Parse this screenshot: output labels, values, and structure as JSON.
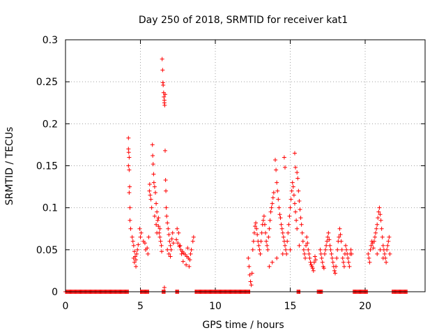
{
  "chart_data": {
    "type": "scatter",
    "title": "Day 250 of 2018, SRMTID for receiver kat1",
    "xlabel": "GPS time / hours",
    "ylabel": "SRMTID / TECUs",
    "xlim": [
      0,
      24
    ],
    "ylim": [
      0,
      0.3
    ],
    "xticks": [
      0,
      5,
      10,
      15,
      20
    ],
    "yticks": [
      0,
      0.05,
      0.1,
      0.15,
      0.2,
      0.25,
      0.3
    ],
    "xtick_labels": [
      "0",
      "5",
      "10",
      "15",
      "20"
    ],
    "ytick_labels": [
      "0",
      "0.05",
      "0.1",
      "0.15",
      "0.2",
      "0.25",
      "0.3"
    ],
    "grid": true,
    "marker": "+",
    "color": "#ff0000",
    "series": [
      {
        "name": "kat1",
        "points": [
          [
            4.2,
            0.183
          ],
          [
            4.2,
            0.17
          ],
          [
            4.22,
            0.166
          ],
          [
            4.25,
            0.16
          ],
          [
            4.2,
            0.15
          ],
          [
            4.25,
            0.145
          ],
          [
            4.28,
            0.125
          ],
          [
            4.25,
            0.118
          ],
          [
            4.3,
            0.1
          ],
          [
            4.3,
            0.085
          ],
          [
            4.35,
            0.075
          ],
          [
            4.45,
            0.065
          ],
          [
            4.5,
            0.06
          ],
          [
            4.55,
            0.055
          ],
          [
            4.6,
            0.048
          ],
          [
            4.65,
            0.042
          ],
          [
            4.7,
            0.038
          ],
          [
            4.75,
            0.045
          ],
          [
            4.8,
            0.05
          ],
          [
            4.55,
            0.04
          ],
          [
            4.6,
            0.035
          ],
          [
            4.7,
            0.03
          ],
          [
            4.85,
            0.056
          ],
          [
            4.95,
            0.075
          ],
          [
            5.0,
            0.065
          ],
          [
            5.05,
            0.07
          ],
          [
            5.2,
            0.06
          ],
          [
            5.3,
            0.058
          ],
          [
            5.35,
            0.05
          ],
          [
            5.45,
            0.052
          ],
          [
            5.5,
            0.045
          ],
          [
            5.55,
            0.065
          ],
          [
            5.6,
            0.12
          ],
          [
            5.62,
            0.128
          ],
          [
            5.65,
            0.115
          ],
          [
            5.7,
            0.11
          ],
          [
            5.75,
            0.1
          ],
          [
            5.8,
            0.175
          ],
          [
            5.82,
            0.162
          ],
          [
            5.85,
            0.152
          ],
          [
            5.88,
            0.14
          ],
          [
            5.9,
            0.13
          ],
          [
            5.95,
            0.125
          ],
          [
            6.0,
            0.118
          ],
          [
            6.05,
            0.105
          ],
          [
            6.1,
            0.095
          ],
          [
            6.15,
            0.085
          ],
          [
            6.2,
            0.078
          ],
          [
            6.25,
            0.07
          ],
          [
            6.3,
            0.065
          ],
          [
            6.35,
            0.06
          ],
          [
            6.4,
            0.055
          ],
          [
            6.42,
            0.048
          ],
          [
            6.1,
            0.07
          ],
          [
            6.2,
            0.088
          ],
          [
            6.3,
            0.075
          ],
          [
            5.95,
            0.09
          ],
          [
            6.05,
            0.08
          ],
          [
            6.45,
            0.277
          ],
          [
            6.48,
            0.264
          ],
          [
            6.5,
            0.249
          ],
          [
            6.52,
            0.246
          ],
          [
            6.55,
            0.237
          ],
          [
            6.57,
            0.232
          ],
          [
            6.6,
            0.228
          ],
          [
            6.6,
            0.225
          ],
          [
            6.62,
            0.222
          ],
          [
            6.65,
            0.235
          ],
          [
            6.65,
            0.168
          ],
          [
            6.68,
            0.133
          ],
          [
            6.7,
            0.12
          ],
          [
            6.72,
            0.1
          ],
          [
            6.75,
            0.09
          ],
          [
            6.8,
            0.082
          ],
          [
            6.85,
            0.075
          ],
          [
            6.9,
            0.068
          ],
          [
            6.95,
            0.06
          ],
          [
            7.0,
            0.055
          ],
          [
            7.05,
            0.05
          ],
          [
            7.1,
            0.063
          ],
          [
            7.15,
            0.07
          ],
          [
            7.2,
            0.058
          ],
          [
            6.8,
            0.05
          ],
          [
            6.9,
            0.045
          ],
          [
            7.0,
            0.042
          ],
          [
            6.6,
            0.005
          ],
          [
            7.4,
            0.062
          ],
          [
            7.5,
            0.058
          ],
          [
            7.6,
            0.054
          ],
          [
            7.7,
            0.05
          ],
          [
            7.8,
            0.048
          ],
          [
            7.9,
            0.046
          ],
          [
            8.0,
            0.044
          ],
          [
            8.1,
            0.042
          ],
          [
            8.2,
            0.04
          ],
          [
            8.3,
            0.038
          ],
          [
            8.4,
            0.05
          ],
          [
            8.5,
            0.06
          ],
          [
            8.55,
            0.065
          ],
          [
            7.45,
            0.075
          ],
          [
            7.55,
            0.07
          ],
          [
            7.65,
            0.055
          ],
          [
            7.85,
            0.036
          ],
          [
            8.05,
            0.032
          ],
          [
            8.25,
            0.03
          ],
          [
            7.75,
            0.045
          ],
          [
            8.15,
            0.052
          ],
          [
            8.35,
            0.045
          ],
          [
            12.2,
            0.04
          ],
          [
            12.25,
            0.03
          ],
          [
            12.3,
            0.02
          ],
          [
            12.35,
            0.012
          ],
          [
            12.4,
            0.008
          ],
          [
            12.45,
            0.022
          ],
          [
            12.5,
            0.05
          ],
          [
            12.55,
            0.06
          ],
          [
            12.6,
            0.07
          ],
          [
            12.65,
            0.078
          ],
          [
            12.7,
            0.082
          ],
          [
            12.75,
            0.075
          ],
          [
            12.8,
            0.068
          ],
          [
            12.85,
            0.06
          ],
          [
            12.9,
            0.055
          ],
          [
            12.95,
            0.05
          ],
          [
            13.0,
            0.045
          ],
          [
            13.05,
            0.06
          ],
          [
            13.1,
            0.07
          ],
          [
            13.15,
            0.08
          ],
          [
            13.2,
            0.085
          ],
          [
            13.25,
            0.09
          ],
          [
            13.3,
            0.08
          ],
          [
            13.35,
            0.07
          ],
          [
            13.4,
            0.06
          ],
          [
            13.45,
            0.055
          ],
          [
            13.5,
            0.05
          ],
          [
            13.55,
            0.065
          ],
          [
            13.6,
            0.075
          ],
          [
            13.65,
            0.085
          ],
          [
            13.7,
            0.095
          ],
          [
            13.75,
            0.1
          ],
          [
            13.8,
            0.105
          ],
          [
            13.85,
            0.112
          ],
          [
            13.9,
            0.118
          ],
          [
            14.0,
            0.157
          ],
          [
            14.05,
            0.145
          ],
          [
            14.1,
            0.13
          ],
          [
            14.15,
            0.12
          ],
          [
            14.2,
            0.11
          ],
          [
            14.25,
            0.1
          ],
          [
            14.3,
            0.092
          ],
          [
            14.35,
            0.088
          ],
          [
            14.4,
            0.08
          ],
          [
            14.45,
            0.075
          ],
          [
            14.5,
            0.07
          ],
          [
            14.55,
            0.065
          ],
          [
            14.6,
            0.06
          ],
          [
            14.65,
            0.055
          ],
          [
            14.7,
            0.05
          ],
          [
            14.75,
            0.045
          ],
          [
            14.8,
            0.06
          ],
          [
            14.85,
            0.07
          ],
          [
            14.9,
            0.08
          ],
          [
            14.95,
            0.09
          ],
          [
            15.0,
            0.1
          ],
          [
            15.05,
            0.11
          ],
          [
            15.1,
            0.12
          ],
          [
            15.15,
            0.13
          ],
          [
            15.2,
            0.125
          ],
          [
            15.25,
            0.115
          ],
          [
            15.3,
            0.105
          ],
          [
            15.35,
            0.095
          ],
          [
            15.4,
            0.085
          ],
          [
            15.45,
            0.075
          ],
          [
            14.6,
            0.16
          ],
          [
            14.65,
            0.148
          ],
          [
            15.3,
            0.165
          ],
          [
            15.35,
            0.148
          ],
          [
            15.45,
            0.142
          ],
          [
            15.5,
            0.135
          ],
          [
            15.55,
            0.12
          ],
          [
            15.6,
            0.108
          ],
          [
            15.65,
            0.098
          ],
          [
            15.7,
            0.088
          ],
          [
            15.75,
            0.08
          ],
          [
            15.8,
            0.07
          ],
          [
            15.85,
            0.06
          ],
          [
            15.9,
            0.05
          ],
          [
            15.95,
            0.045
          ],
          [
            16.0,
            0.04
          ],
          [
            16.05,
            0.055
          ],
          [
            16.1,
            0.065
          ],
          [
            16.15,
            0.058
          ],
          [
            16.2,
            0.05
          ],
          [
            16.25,
            0.045
          ],
          [
            16.3,
            0.04
          ],
          [
            16.35,
            0.035
          ],
          [
            16.4,
            0.032
          ],
          [
            16.45,
            0.03
          ],
          [
            16.5,
            0.028
          ],
          [
            16.55,
            0.025
          ],
          [
            16.6,
            0.035
          ],
          [
            16.65,
            0.042
          ],
          [
            16.7,
            0.038
          ],
          [
            13.6,
            0.03
          ],
          [
            13.8,
            0.035
          ],
          [
            14.1,
            0.04
          ],
          [
            14.5,
            0.045
          ],
          [
            15.0,
            0.05
          ],
          [
            15.6,
            0.055
          ],
          [
            17.0,
            0.05
          ],
          [
            17.05,
            0.045
          ],
          [
            17.1,
            0.04
          ],
          [
            17.15,
            0.035
          ],
          [
            17.2,
            0.03
          ],
          [
            17.25,
            0.028
          ],
          [
            17.3,
            0.045
          ],
          [
            17.35,
            0.05
          ],
          [
            17.4,
            0.055
          ],
          [
            17.45,
            0.06
          ],
          [
            17.5,
            0.065
          ],
          [
            17.55,
            0.07
          ],
          [
            17.6,
            0.062
          ],
          [
            17.65,
            0.055
          ],
          [
            17.7,
            0.05
          ],
          [
            17.75,
            0.045
          ],
          [
            17.8,
            0.04
          ],
          [
            17.85,
            0.035
          ],
          [
            17.9,
            0.03
          ],
          [
            17.95,
            0.025
          ],
          [
            18.0,
            0.022
          ],
          [
            18.05,
            0.03
          ],
          [
            18.1,
            0.04
          ],
          [
            18.15,
            0.05
          ],
          [
            18.2,
            0.06
          ],
          [
            18.25,
            0.065
          ],
          [
            18.3,
            0.075
          ],
          [
            18.35,
            0.068
          ],
          [
            18.4,
            0.06
          ],
          [
            18.45,
            0.05
          ],
          [
            18.5,
            0.04
          ],
          [
            18.55,
            0.035
          ],
          [
            18.6,
            0.03
          ],
          [
            18.65,
            0.045
          ],
          [
            18.7,
            0.055
          ],
          [
            18.75,
            0.05
          ],
          [
            18.8,
            0.045
          ],
          [
            18.85,
            0.04
          ],
          [
            18.9,
            0.035
          ],
          [
            18.95,
            0.03
          ],
          [
            19.0,
            0.045
          ],
          [
            19.05,
            0.05
          ],
          [
            19.1,
            0.045
          ],
          [
            20.2,
            0.045
          ],
          [
            20.25,
            0.04
          ],
          [
            20.3,
            0.035
          ],
          [
            20.35,
            0.05
          ],
          [
            20.4,
            0.055
          ],
          [
            20.45,
            0.06
          ],
          [
            20.5,
            0.058
          ],
          [
            20.55,
            0.052
          ],
          [
            20.6,
            0.06
          ],
          [
            20.65,
            0.065
          ],
          [
            20.7,
            0.07
          ],
          [
            20.75,
            0.075
          ],
          [
            20.8,
            0.08
          ],
          [
            20.85,
            0.088
          ],
          [
            20.9,
            0.095
          ],
          [
            20.95,
            0.1
          ],
          [
            21.0,
            0.092
          ],
          [
            21.05,
            0.085
          ],
          [
            21.1,
            0.075
          ],
          [
            21.15,
            0.065
          ],
          [
            21.2,
            0.055
          ],
          [
            21.25,
            0.05
          ],
          [
            21.3,
            0.045
          ],
          [
            21.35,
            0.04
          ],
          [
            21.4,
            0.035
          ],
          [
            21.45,
            0.05
          ],
          [
            21.5,
            0.055
          ],
          [
            21.55,
            0.06
          ],
          [
            21.6,
            0.065
          ],
          [
            21.65,
            0.045
          ],
          [
            20.8,
            0.045
          ],
          [
            21.0,
            0.05
          ],
          [
            21.2,
            0.04
          ]
        ],
        "zero_ranges": [
          [
            0.0,
            4.2
          ],
          [
            5.0,
            5.55
          ],
          [
            6.45,
            6.65
          ],
          [
            7.35,
            7.55
          ],
          [
            8.65,
            12.3
          ],
          [
            15.45,
            15.65
          ],
          [
            16.8,
            17.15
          ],
          [
            19.2,
            20.15
          ],
          [
            21.8,
            22.8
          ]
        ]
      }
    ]
  }
}
